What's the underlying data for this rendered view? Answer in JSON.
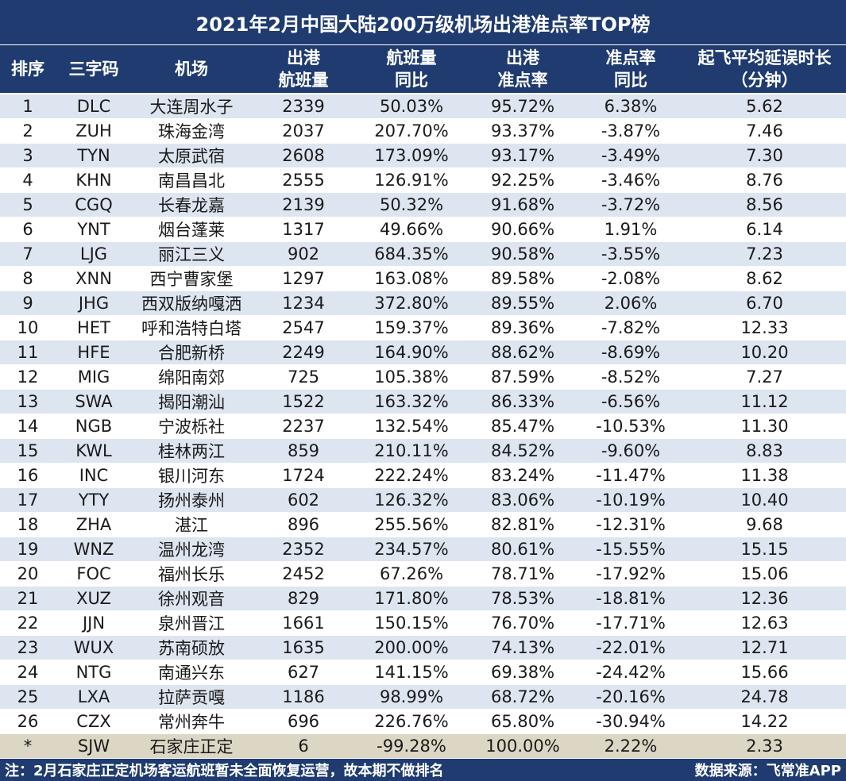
{
  "title": "2021年2月中国大陆200万级机场出港准点率TOP榜",
  "headers": [
    {
      "line1": "排序",
      "line2": ""
    },
    {
      "line1": "三字码",
      "line2": ""
    },
    {
      "line1": "机场",
      "line2": ""
    },
    {
      "line1": "出港",
      "line2": "航班量"
    },
    {
      "line1": "航班量",
      "line2": "同比"
    },
    {
      "line1": "出港",
      "line2": "准点率"
    },
    {
      "line1": "准点率",
      "line2": "同比"
    },
    {
      "line1": "起飞平均延误时长",
      "line2": "（分钟）"
    }
  ],
  "rows": [
    [
      "1",
      "DLC",
      "大连周水子",
      "2339",
      "50.03%",
      "95.72%",
      "6.38%",
      "5.62"
    ],
    [
      "2",
      "ZUH",
      "珠海金湾",
      "2037",
      "207.70%",
      "93.37%",
      "-3.87%",
      "7.46"
    ],
    [
      "3",
      "TYN",
      "太原武宿",
      "2608",
      "173.09%",
      "93.17%",
      "-3.49%",
      "7.30"
    ],
    [
      "4",
      "KHN",
      "南昌昌北",
      "2555",
      "126.91%",
      "92.25%",
      "-3.46%",
      "8.76"
    ],
    [
      "5",
      "CGQ",
      "长春龙嘉",
      "2139",
      "50.32%",
      "91.68%",
      "-3.72%",
      "8.56"
    ],
    [
      "6",
      "YNT",
      "烟台蓬莱",
      "1317",
      "49.66%",
      "90.66%",
      "1.91%",
      "6.14"
    ],
    [
      "7",
      "LJG",
      "丽江三义",
      "902",
      "684.35%",
      "90.58%",
      "-3.55%",
      "7.23"
    ],
    [
      "8",
      "XNN",
      "西宁曹家堡",
      "1297",
      "163.08%",
      "89.58%",
      "-2.08%",
      "8.62"
    ],
    [
      "9",
      "JHG",
      "西双版纳嘎洒",
      "1234",
      "372.80%",
      "89.55%",
      "2.06%",
      "6.70"
    ],
    [
      "10",
      "HET",
      "呼和浩特白塔",
      "2547",
      "159.37%",
      "89.36%",
      "-7.82%",
      "12.33"
    ],
    [
      "11",
      "HFE",
      "合肥新桥",
      "2249",
      "164.90%",
      "88.62%",
      "-8.69%",
      "10.20"
    ],
    [
      "12",
      "MIG",
      "绵阳南郊",
      "725",
      "105.38%",
      "87.59%",
      "-8.52%",
      "7.27"
    ],
    [
      "13",
      "SWA",
      "揭阳潮汕",
      "1522",
      "163.32%",
      "86.33%",
      "-6.56%",
      "11.12"
    ],
    [
      "14",
      "NGB",
      "宁波栎社",
      "2237",
      "132.54%",
      "85.47%",
      "-10.53%",
      "11.30"
    ],
    [
      "15",
      "KWL",
      "桂林两江",
      "859",
      "210.11%",
      "84.52%",
      "-9.60%",
      "8.83"
    ],
    [
      "16",
      "INC",
      "银川河东",
      "1724",
      "222.24%",
      "83.24%",
      "-11.47%",
      "11.38"
    ],
    [
      "17",
      "YTY",
      "扬州泰州",
      "602",
      "126.32%",
      "83.06%",
      "-10.19%",
      "10.40"
    ],
    [
      "18",
      "ZHA",
      "湛江",
      "896",
      "255.56%",
      "82.81%",
      "-12.31%",
      "9.68"
    ],
    [
      "19",
      "WNZ",
      "温州龙湾",
      "2352",
      "234.57%",
      "80.61%",
      "-15.55%",
      "15.15"
    ],
    [
      "20",
      "FOC",
      "福州长乐",
      "2452",
      "67.26%",
      "78.71%",
      "-17.92%",
      "15.06"
    ],
    [
      "21",
      "XUZ",
      "徐州观音",
      "829",
      "171.80%",
      "78.53%",
      "-18.81%",
      "12.36"
    ],
    [
      "22",
      "JJN",
      "泉州晋江",
      "1661",
      "150.15%",
      "76.70%",
      "-17.71%",
      "12.63"
    ],
    [
      "23",
      "WUX",
      "苏南硕放",
      "1635",
      "200.00%",
      "74.13%",
      "-22.01%",
      "12.71"
    ],
    [
      "24",
      "NTG",
      "南通兴东",
      "627",
      "141.15%",
      "69.38%",
      "-24.42%",
      "15.66"
    ],
    [
      "25",
      "LXA",
      "拉萨贡嘎",
      "1186",
      "98.99%",
      "68.72%",
      "-20.16%",
      "24.78"
    ],
    [
      "26",
      "CZX",
      "常州奔牛",
      "696",
      "226.76%",
      "65.80%",
      "-30.94%",
      "14.22"
    ]
  ],
  "special_row": [
    "*",
    "SJW",
    "石家庄正定",
    "6",
    "-99.28%",
    "100.00%",
    "2.22%",
    "2.33"
  ],
  "footer": {
    "note": "注：2月石家庄正定机场客运航班暂未全面恢复运营，故本期不做排名",
    "source": "数据来源：飞常准APP"
  },
  "colors": {
    "header_bg": "#1f3b70",
    "band_row": "#dde5f0",
    "special_row": "#dcd6c4"
  }
}
